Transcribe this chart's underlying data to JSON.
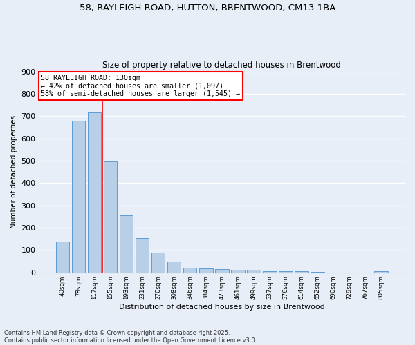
{
  "title_line1": "58, RAYLEIGH ROAD, HUTTON, BRENTWOOD, CM13 1BA",
  "title_line2": "Size of property relative to detached houses in Brentwood",
  "xlabel": "Distribution of detached houses by size in Brentwood",
  "ylabel": "Number of detached properties",
  "categories": [
    "40sqm",
    "78sqm",
    "117sqm",
    "155sqm",
    "193sqm",
    "231sqm",
    "270sqm",
    "308sqm",
    "346sqm",
    "384sqm",
    "423sqm",
    "461sqm",
    "499sqm",
    "537sqm",
    "576sqm",
    "614sqm",
    "652sqm",
    "690sqm",
    "729sqm",
    "767sqm",
    "805sqm"
  ],
  "values": [
    138,
    678,
    717,
    497,
    255,
    155,
    88,
    50,
    20,
    18,
    16,
    10,
    10,
    5,
    5,
    5,
    2,
    0,
    0,
    0,
    5
  ],
  "bar_color": "#b8cfe8",
  "bar_edge_color": "#5b9bd5",
  "background_color": "#e8eef8",
  "grid_color": "#ffffff",
  "annotation_line1": "58 RAYLEIGH ROAD: 130sqm",
  "annotation_line2": "← 42% of detached houses are smaller (1,097)",
  "annotation_line3": "58% of semi-detached houses are larger (1,545) →",
  "red_line_x": 2.5,
  "ylim": [
    0,
    900
  ],
  "yticks": [
    0,
    100,
    200,
    300,
    400,
    500,
    600,
    700,
    800,
    900
  ],
  "footnote_line1": "Contains HM Land Registry data © Crown copyright and database right 2025.",
  "footnote_line2": "Contains public sector information licensed under the Open Government Licence v3.0."
}
